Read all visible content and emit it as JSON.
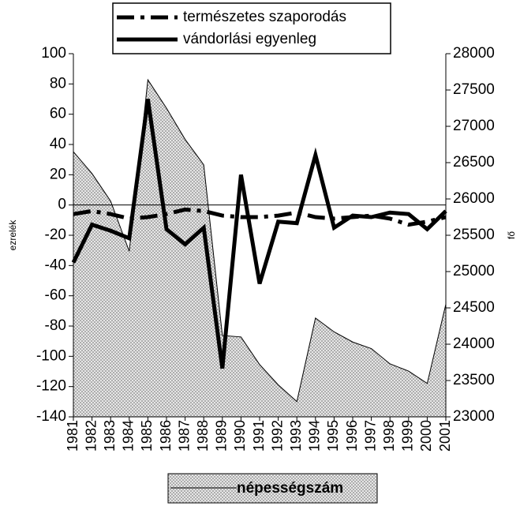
{
  "chart_data": {
    "type": "line",
    "categories": [
      "1981",
      "1982",
      "1983",
      "1984",
      "1985",
      "1986",
      "1987",
      "1988",
      "1989",
      "1990",
      "1991",
      "1992",
      "1993",
      "1994",
      "1995",
      "1996",
      "1997",
      "1998",
      "1999",
      "2000",
      "2001"
    ],
    "series": [
      {
        "name": "népességszám",
        "style": "area",
        "axis": "y2",
        "color": "#bdbdbd",
        "values": [
          26650,
          26350,
          25970,
          25280,
          27640,
          27250,
          26820,
          26470,
          24120,
          24100,
          23720,
          23440,
          23210,
          24360,
          24170,
          24030,
          23940,
          23730,
          23630,
          23460,
          24550
        ]
      },
      {
        "name": "természetes szaporodás",
        "style": "dashdot",
        "color": "#000000",
        "values": [
          -6,
          -4,
          -6,
          -9,
          -8,
          -6,
          -3,
          -4,
          -7,
          -8,
          -8,
          -7,
          -5,
          -8,
          -9,
          -8,
          -7,
          -9,
          -13,
          -11,
          -8
        ]
      },
      {
        "name": "vándorlási egyenleg",
        "style": "solid",
        "color": "#000000",
        "values": [
          -38,
          -13,
          -17,
          -22,
          70,
          -16,
          -26,
          -15,
          -108,
          20,
          -52,
          -11,
          -12,
          33,
          -15,
          -7,
          -8,
          -5,
          -6,
          -16,
          -4
        ]
      }
    ],
    "ylabel": "ezrelék",
    "y2label": "fő",
    "ylim": [
      -140,
      100
    ],
    "yticks": [
      -140,
      -120,
      -100,
      -80,
      -60,
      -40,
      -20,
      0,
      20,
      40,
      60,
      80,
      100
    ],
    "y2lim": [
      23000,
      28000
    ],
    "y2ticks": [
      23000,
      23500,
      24000,
      24500,
      25000,
      25500,
      26000,
      26500,
      27000,
      27500,
      28000
    ]
  }
}
